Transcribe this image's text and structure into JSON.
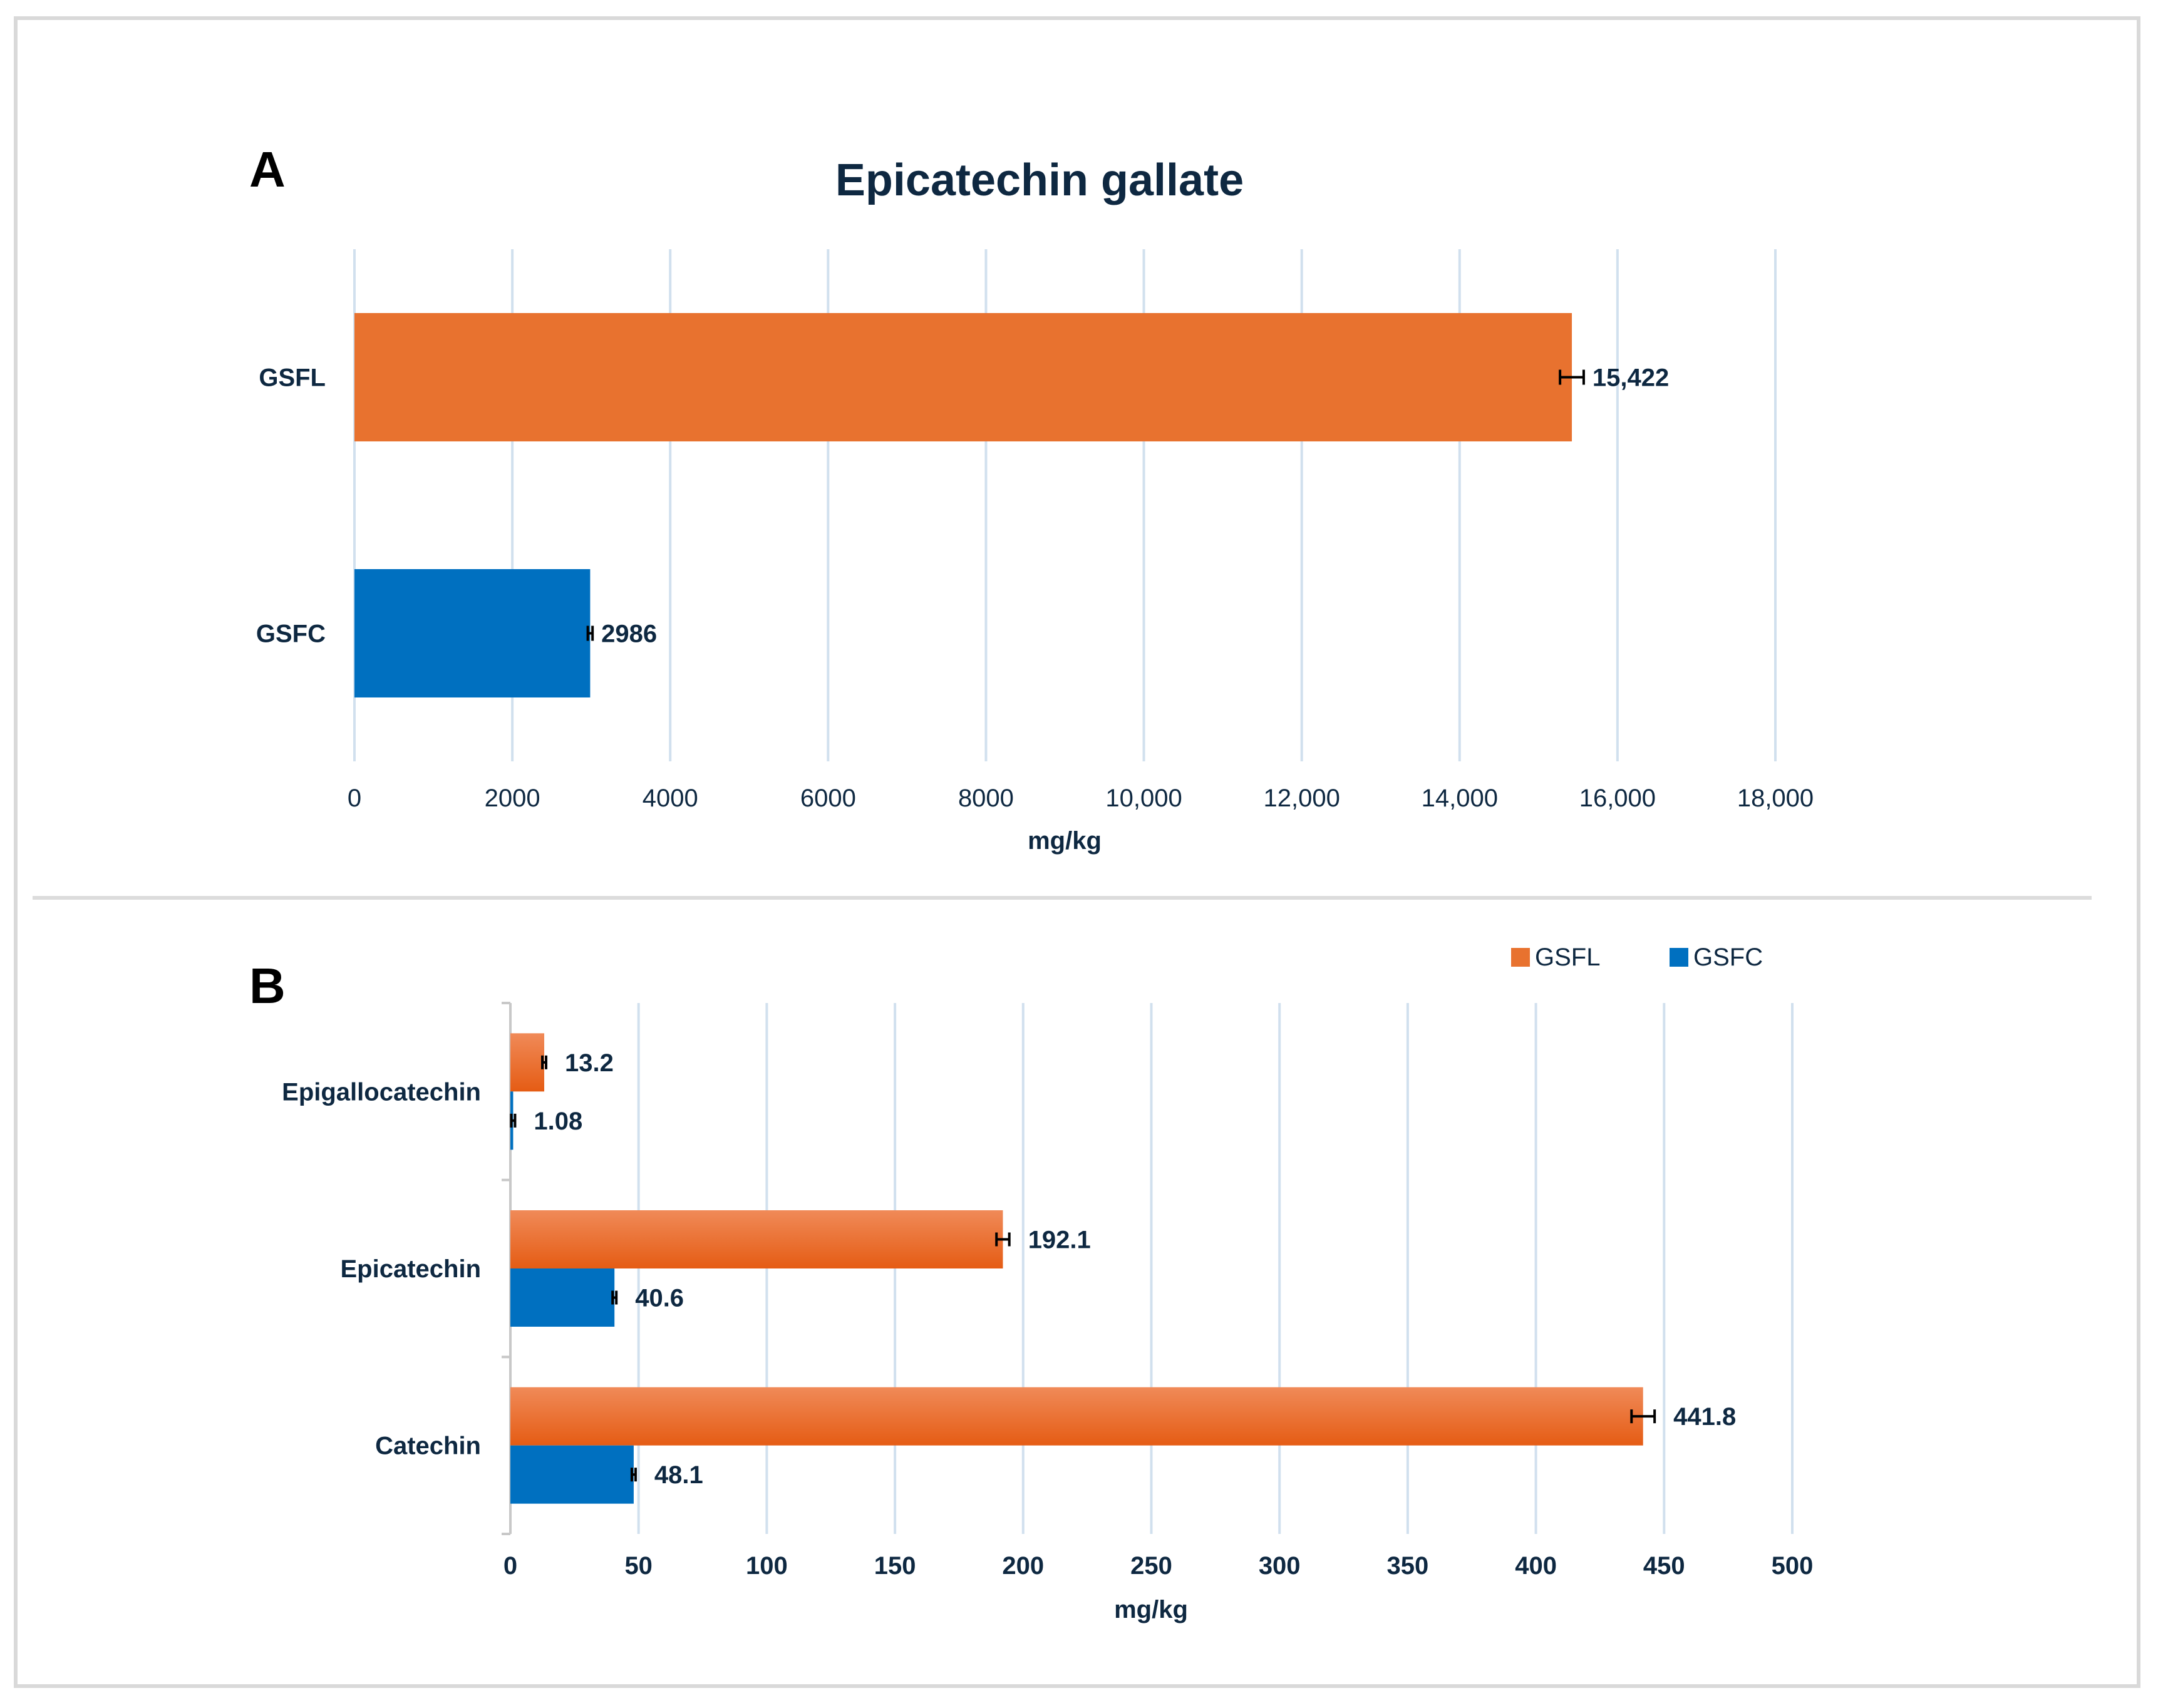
{
  "panels": {
    "a": {
      "letter": "A"
    },
    "b": {
      "letter": "B"
    }
  },
  "colors": {
    "gsfl": "#e8722f",
    "gsfc": "#0070c0",
    "gsfl_light": "#f08a58",
    "gsfl_dark": "#e55c14",
    "grid": "#d1e0ee",
    "text": "#0e2841",
    "divider": "#dcdcdc"
  },
  "chart_data": [
    {
      "type": "bar",
      "orientation": "horizontal",
      "title": "Epicatechin gallate",
      "categories": [
        "GSFL",
        "GSFC"
      ],
      "values": [
        15422,
        2986
      ],
      "data_labels": [
        "15,422",
        "2986"
      ],
      "xlabel": "mg/kg",
      "ylabel": "",
      "xlim": [
        0,
        18000
      ],
      "xticks": [
        0,
        2000,
        4000,
        6000,
        8000,
        10000,
        12000,
        14000,
        16000,
        18000
      ],
      "xtick_labels": [
        "0",
        "2000",
        "4000",
        "6000",
        "8000",
        "10,000",
        "12,000",
        "14,000",
        "16,000",
        "18,000"
      ],
      "error_bars": [
        150,
        30
      ],
      "grid": true,
      "legend": false
    },
    {
      "type": "bar",
      "orientation": "horizontal",
      "title": "",
      "categories": [
        "Epigallocatechin",
        "Epicatechin",
        "Catechin"
      ],
      "series": [
        {
          "name": "GSFL",
          "values": [
            13.2,
            192.1,
            441.8
          ],
          "labels": [
            "13.2",
            "192.1",
            "441.8"
          ],
          "errors": [
            0.6,
            2.5,
            4.5
          ]
        },
        {
          "name": "GSFC",
          "values": [
            1.08,
            40.6,
            48.1
          ],
          "labels": [
            "1.08",
            "40.6",
            "48.1"
          ],
          "errors": [
            0.3,
            0.5,
            0.5
          ]
        }
      ],
      "xlabel": "mg/kg",
      "ylabel": "",
      "xlim": [
        0,
        500
      ],
      "xticks": [
        0,
        50,
        100,
        150,
        200,
        250,
        300,
        350,
        400,
        450,
        500
      ],
      "xtick_labels": [
        "0",
        "50",
        "100",
        "150",
        "200",
        "250",
        "300",
        "350",
        "400",
        "450",
        "500"
      ],
      "grid": true,
      "legend": "top-right"
    }
  ]
}
